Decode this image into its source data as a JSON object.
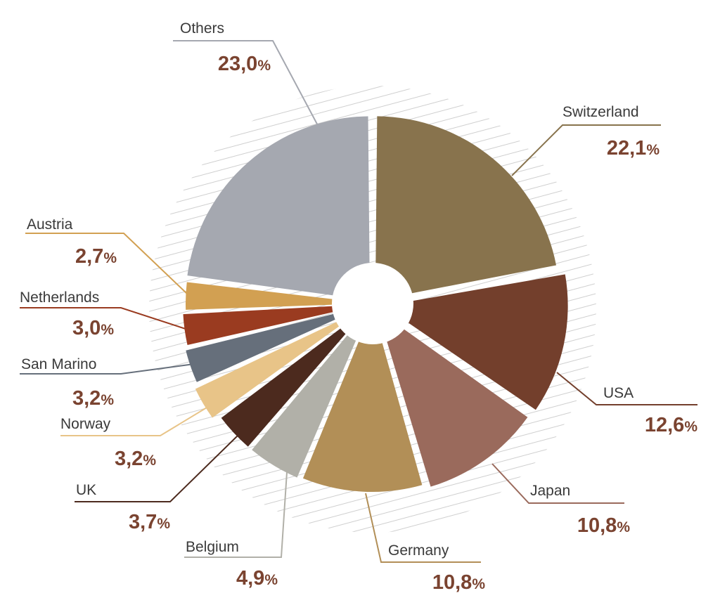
{
  "chart_data": {
    "type": "pie",
    "categories": [
      "Switzerland",
      "USA",
      "Japan",
      "Germany",
      "Belgium",
      "UK",
      "Norway",
      "San Marino",
      "Netherlands",
      "Austria",
      "Others"
    ],
    "values": [
      22.1,
      12.6,
      10.8,
      10.8,
      4.9,
      3.7,
      3.2,
      3.2,
      3.0,
      2.7,
      23.0
    ],
    "labels": [
      "22,1",
      "12,6",
      "10,8",
      "10,8",
      "4,9",
      "3,7",
      "3,2",
      "3,2",
      "3,0",
      "2,7",
      "23,0"
    ],
    "unit": "%",
    "colors": [
      "#88734d",
      "#733f2c",
      "#9a6a5c",
      "#b28f57",
      "#b1b0a8",
      "#4c2a1e",
      "#e8c488",
      "#666f7b",
      "#9a3b20",
      "#d2a052",
      "#a5a8b0"
    ]
  }
}
